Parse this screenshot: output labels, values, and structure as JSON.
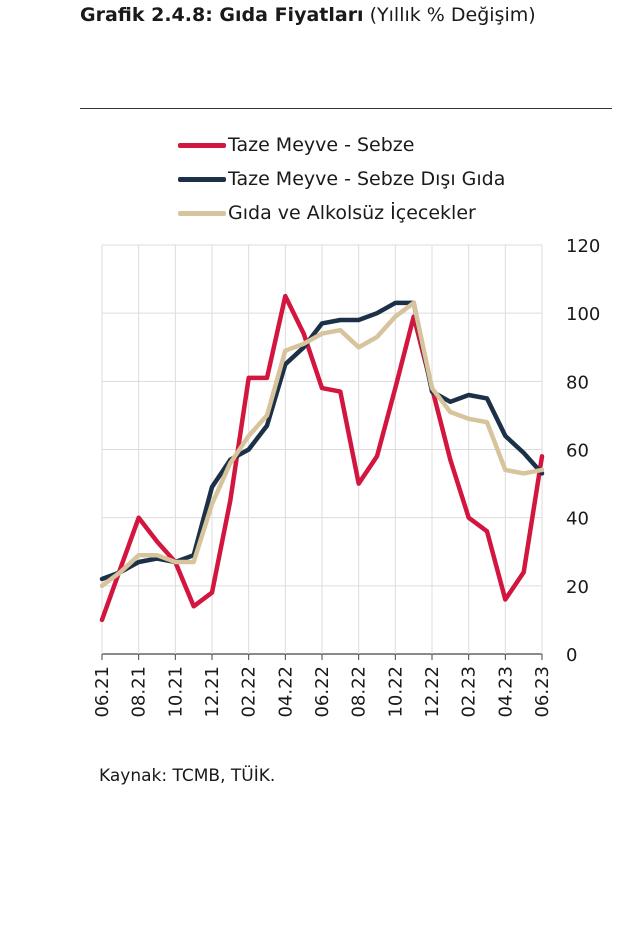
{
  "title": {
    "bold": "Grafik 2.4.8: Gıda Fiyatları",
    "normal": "(Yıllık % Değişim)"
  },
  "source": "Kaynak: TCMB, TÜİK.",
  "chart_data": {
    "type": "line",
    "x": [
      "06.21",
      "07.21",
      "08.21",
      "09.21",
      "10.21",
      "11.21",
      "12.21",
      "01.22",
      "02.22",
      "03.22",
      "04.22",
      "05.22",
      "06.22",
      "07.22",
      "08.22",
      "09.22",
      "10.22",
      "11.22",
      "12.22",
      "01.23",
      "02.23",
      "03.23",
      "04.23",
      "05.23",
      "06.23"
    ],
    "x_tick_labels": [
      "06.21",
      "08.21",
      "10.21",
      "12.21",
      "02.22",
      "04.22",
      "06.22",
      "08.22",
      "10.22",
      "12.22",
      "02.23",
      "04.23",
      "06.23"
    ],
    "y_tick_labels": [
      "0",
      "20",
      "40",
      "60",
      "80",
      "100",
      "120"
    ],
    "ylim": [
      0,
      120
    ],
    "y_axis_side": "right",
    "grid": true,
    "legend_position": "top",
    "series": [
      {
        "name": "Taze Meyve - Sebze",
        "color": "#d2163f",
        "values": [
          10,
          25,
          40,
          33,
          27,
          14,
          18,
          45,
          81,
          81,
          105,
          94,
          78,
          77,
          50,
          58,
          78,
          99,
          78,
          57,
          40,
          36,
          16,
          24,
          58
        ]
      },
      {
        "name": "Taze Meyve - Sebze Dışı Gıda",
        "color": "#1c3148",
        "values": [
          22,
          24,
          27,
          28,
          27,
          29,
          49,
          57,
          60,
          67,
          85,
          90,
          97,
          98,
          98,
          100,
          103,
          103,
          77,
          74,
          76,
          75,
          64,
          59,
          53
        ]
      },
      {
        "name": "Gıda ve Alkolsüz İçecekler",
        "color": "#d7c39c",
        "values": [
          20,
          24,
          29,
          29,
          27,
          27,
          44,
          56,
          64,
          70,
          89,
          91,
          94,
          95,
          90,
          93,
          99,
          103,
          78,
          71,
          69,
          68,
          54,
          53,
          54
        ]
      }
    ]
  }
}
